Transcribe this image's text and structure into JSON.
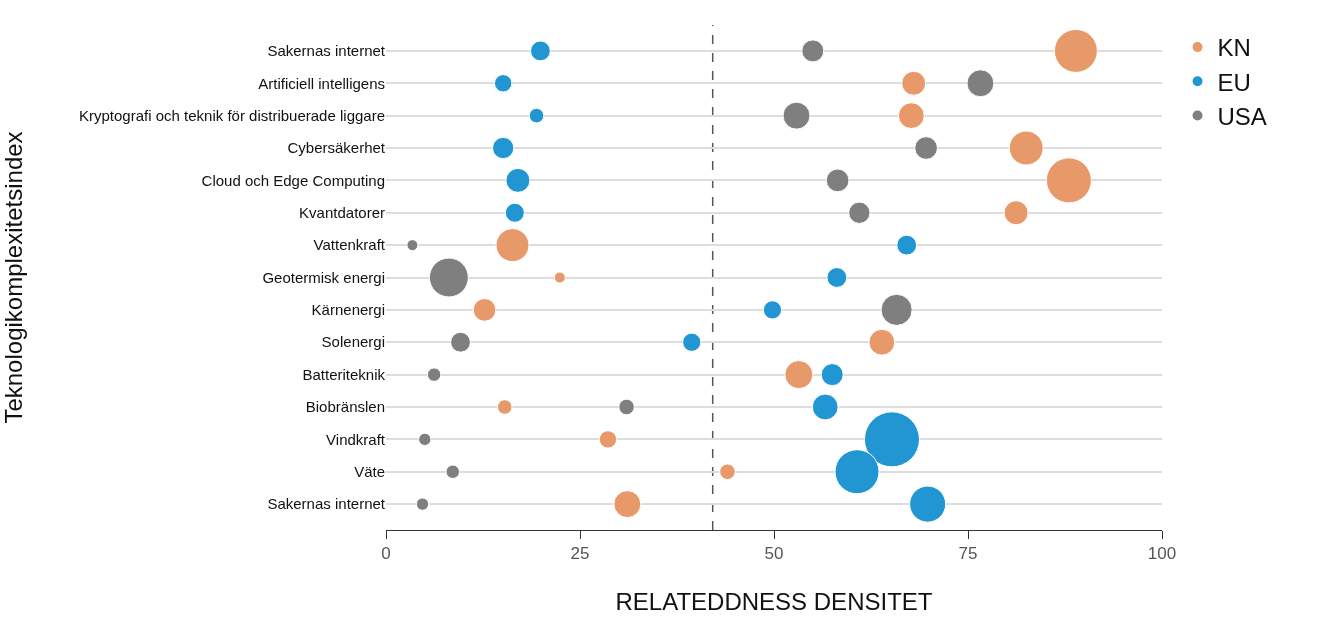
{
  "chart_data": {
    "type": "bubble",
    "orientation": "horizontal",
    "ylabel": "Teknologikomplexitetsindex",
    "xlabel": "RELATEDDNESS DENSITET",
    "categories": [
      "Sakernas internet",
      "Artificiell intelligens",
      "Kryptografi och teknik för distribuerade liggare",
      "Cybersäkerhet",
      "Cloud och Edge Computing",
      "Kvantdatorer",
      "Vattenkraft",
      "Geotermisk energi",
      "Kärnenergi",
      "Solenergi",
      "Batteriteknik",
      "Biobränslen",
      "Vindkraft",
      "Väte",
      "Sakernas internet"
    ],
    "series": [
      {
        "name": "KN",
        "color": "#e8996a",
        "values": [
          88.9,
          68,
          67.7,
          82.5,
          88,
          81.2,
          16.3,
          22.4,
          12.7,
          63.9,
          53.2,
          15.3,
          28.6,
          44,
          31.1
        ],
        "sizes": [
          0.61,
          0.19,
          0.22,
          0.38,
          0.67,
          0.19,
          0.36,
          0.04,
          0.17,
          0.22,
          0.26,
          0.07,
          0.1,
          0.08,
          0.24
        ]
      },
      {
        "name": "EU",
        "color": "#2196d3",
        "values": [
          19.9,
          15.1,
          19.4,
          15.1,
          17,
          16.6,
          67.1,
          58.1,
          49.8,
          39.4,
          57.5,
          56.6,
          65.2,
          60.7,
          69.8
        ],
        "sizes": [
          0.13,
          0.1,
          0.07,
          0.15,
          0.19,
          0.12,
          0.13,
          0.13,
          0.11,
          0.11,
          0.16,
          0.22,
          1,
          0.64,
          0.43
        ]
      },
      {
        "name": "USA",
        "color": "#7f7f7f",
        "values": [
          55,
          76.6,
          52.9,
          69.6,
          58.2,
          61,
          3.4,
          8.1,
          65.8,
          9.6,
          6.2,
          31,
          5,
          8.6,
          4.7
        ],
        "sizes": [
          0.16,
          0.24,
          0.24,
          0.17,
          0.17,
          0.15,
          0.04,
          0.5,
          0.32,
          0.13,
          0.06,
          0.08,
          0.05,
          0.06,
          0.05
        ]
      }
    ],
    "xlim": [
      0,
      100
    ],
    "xticks": [
      0,
      25,
      50,
      75,
      100
    ],
    "ref_lines": [
      {
        "axis": "x",
        "value": 42.1,
        "color": "#555555",
        "line_style": "dashed"
      }
    ],
    "grid": "y",
    "legend": "top right"
  }
}
